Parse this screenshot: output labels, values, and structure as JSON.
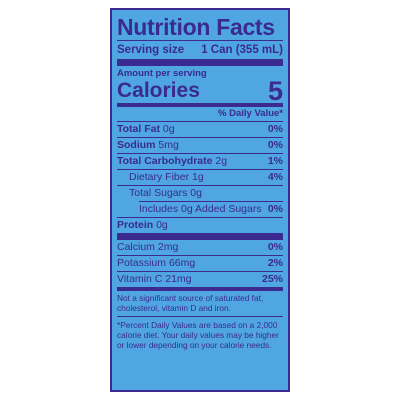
{
  "label": {
    "title": "Nutrition Facts",
    "serving": {
      "label": "Serving size",
      "value": "1 Can (355 mL)"
    },
    "amount_per_serving": "Amount per serving",
    "calories": {
      "label": "Calories",
      "value": "5"
    },
    "daily_value_header": "% Daily Value*",
    "nutrients": [
      {
        "name": "Total Fat",
        "amount": "0g",
        "dv": "0%"
      },
      {
        "name": "Sodium",
        "amount": "5mg",
        "dv": "0%"
      },
      {
        "name": "Total Carbohydrate",
        "amount": "2g",
        "dv": "1%"
      },
      {
        "name": "Dietary Fiber",
        "amount": "1g",
        "dv": "4%"
      },
      {
        "name": "Total Sugars",
        "amount": "0g",
        "dv": ""
      },
      {
        "name": "Includes 0g Added Sugars",
        "amount": "",
        "dv": "0%"
      },
      {
        "name": "Protein",
        "amount": "0g",
        "dv": ""
      }
    ],
    "vitamins": [
      {
        "name": "Calcium",
        "amount": "2mg",
        "dv": "0%"
      },
      {
        "name": "Potassium",
        "amount": "66mg",
        "dv": "2%"
      },
      {
        "name": "Vitamin C",
        "amount": "21mg",
        "dv": "25%"
      }
    ],
    "footnote_significant": "Not a significant source of saturated fat, cholesterol, vitamin D and iron.",
    "footnote_dv": "*Percent Daily Values are based on a 2,000 calorie diet. Your daily values may be higher or lower depending on your calorie needs."
  }
}
